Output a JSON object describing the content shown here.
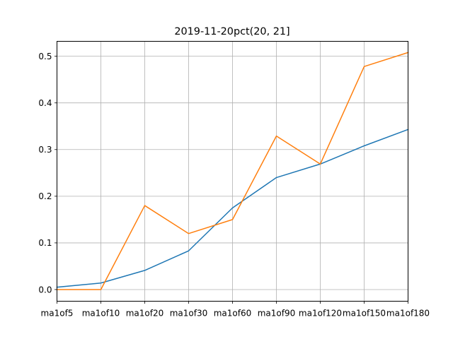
{
  "chart_data": {
    "type": "line",
    "title": "2019-11-20pct(20, 21]",
    "xlabel": "",
    "ylabel": "",
    "categories": [
      "ma1of5",
      "ma1of10",
      "ma1of20",
      "ma1of30",
      "ma1of60",
      "ma1of90",
      "ma1of120",
      "ma1of150",
      "ma1of180"
    ],
    "ylim": [
      -0.025,
      0.532
    ],
    "yticks": [
      0.0,
      0.1,
      0.2,
      0.3,
      0.4,
      0.5
    ],
    "ytick_labels": [
      "0.0",
      "0.1",
      "0.2",
      "0.3",
      "0.4",
      "0.5"
    ],
    "grid": true,
    "series": [
      {
        "color": "#1f77b4",
        "values": [
          0.005,
          0.014,
          0.041,
          0.083,
          0.175,
          0.24,
          0.269,
          0.308,
          0.343
        ]
      },
      {
        "color": "#ff7f0e",
        "values": [
          0.0,
          0.0,
          0.18,
          0.12,
          0.15,
          0.329,
          0.269,
          0.478,
          0.508
        ]
      }
    ]
  }
}
